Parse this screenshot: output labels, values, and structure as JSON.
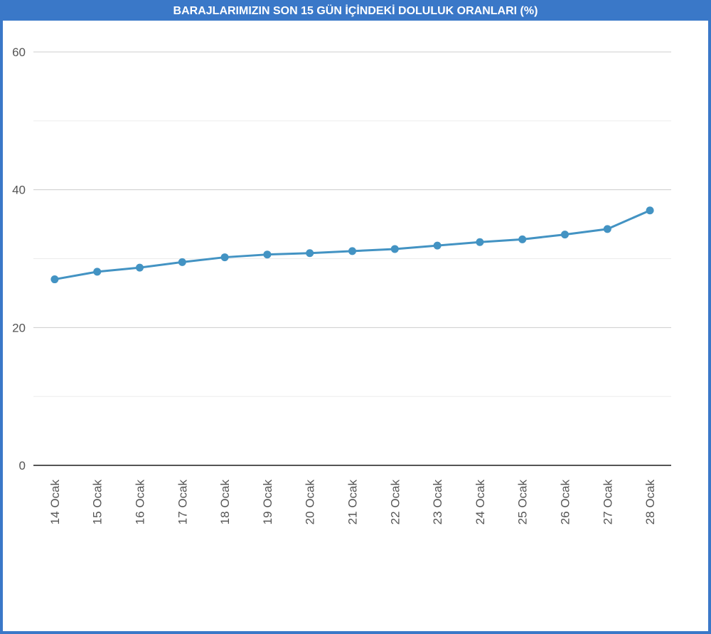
{
  "chart_data": {
    "type": "line",
    "title": "BARAJLARIMIZIN SON 15 GÜN İÇİNDEKİ DOLULUK ORANLARI (%)",
    "categories": [
      "14 Ocak",
      "15 Ocak",
      "16 Ocak",
      "17 Ocak",
      "18 Ocak",
      "19 Ocak",
      "20 Ocak",
      "21 Ocak",
      "22 Ocak",
      "23 Ocak",
      "24 Ocak",
      "25 Ocak",
      "26 Ocak",
      "27 Ocak",
      "28 Ocak"
    ],
    "values": [
      27.0,
      28.1,
      28.7,
      29.5,
      30.2,
      30.6,
      30.8,
      31.1,
      31.4,
      31.9,
      32.4,
      32.8,
      33.5,
      34.3,
      37.0
    ],
    "color": "#4393c3",
    "ylim": [
      0,
      60
    ],
    "yticks": [
      0,
      20,
      40,
      60
    ],
    "yminorticks": [
      10,
      30,
      50
    ],
    "grid": true
  }
}
